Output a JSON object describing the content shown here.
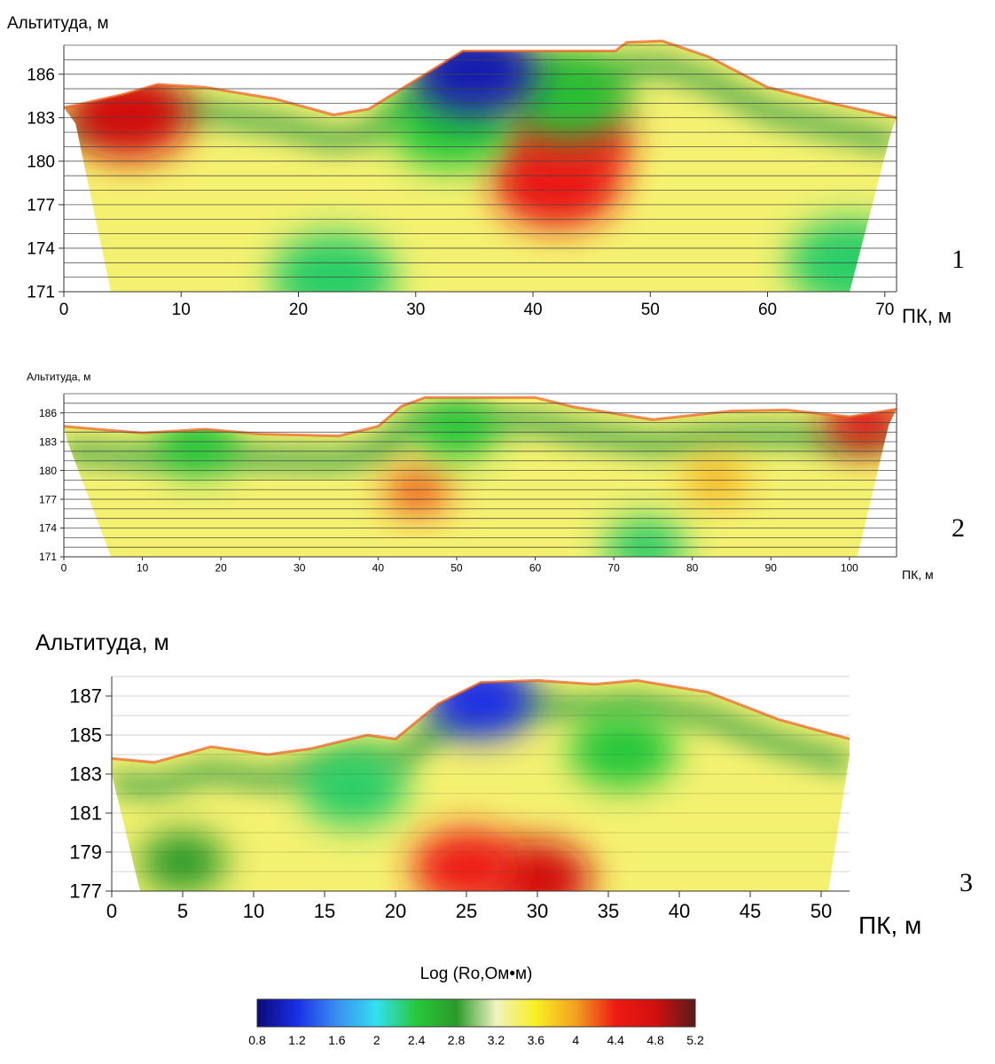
{
  "chart_data": [
    {
      "type": "heatmap",
      "panel_label": "1",
      "ylabel": "Альтитуда, м",
      "xlabel": "ПК, м",
      "x_ticks": [
        "0",
        "10",
        "20",
        "30",
        "40",
        "50",
        "60",
        "70"
      ],
      "y_ticks": [
        "186",
        "183",
        "180",
        "177",
        "174",
        "171"
      ],
      "xlim": [
        0,
        71
      ],
      "ylim": [
        171,
        188
      ],
      "surface": [
        [
          0,
          183.7
        ],
        [
          5,
          184.6
        ],
        [
          8,
          185.3
        ],
        [
          12,
          185.1
        ],
        [
          18,
          184.3
        ],
        [
          23,
          183.2
        ],
        [
          26,
          183.6
        ],
        [
          30,
          185.6
        ],
        [
          34,
          187.6
        ],
        [
          38,
          187.6
        ],
        [
          44,
          187.6
        ],
        [
          47,
          187.6
        ],
        [
          48,
          188.2
        ],
        [
          51,
          188.3
        ],
        [
          55,
          187.2
        ],
        [
          60,
          185.1
        ],
        [
          66,
          183.9
        ],
        [
          71,
          183.0
        ]
      ],
      "section_bottom_x": [
        4,
        67
      ],
      "section_top_x": [
        1,
        70.5
      ],
      "anomalies": [
        {
          "x": 42,
          "y": 178.5,
          "log_rho": 4.5
        },
        {
          "x": 43,
          "y": 181.3,
          "log_rho": 4.4
        },
        {
          "x": 33,
          "y": 182.5,
          "log_rho": 2.4
        },
        {
          "x": 43,
          "y": 184.5,
          "log_rho": 2.5
        },
        {
          "x": 5.5,
          "y": 183.2,
          "log_rho": 4.8
        },
        {
          "x": 35,
          "y": 186.2,
          "log_rho": 1.0
        },
        {
          "x": 23,
          "y": 172,
          "log_rho": 2.3
        },
        {
          "x": 67,
          "y": 173,
          "log_rho": 2.3
        }
      ]
    },
    {
      "type": "heatmap",
      "panel_label": "2",
      "ylabel": "Альтитуда, м",
      "xlabel": "ПК, м",
      "x_ticks": [
        "0",
        "10",
        "20",
        "30",
        "40",
        "50",
        "60",
        "70",
        "80",
        "90",
        "100"
      ],
      "y_ticks": [
        "186",
        "183",
        "180",
        "177",
        "174",
        "171"
      ],
      "xlim": [
        0,
        106
      ],
      "ylim": [
        171,
        188
      ],
      "surface": [
        [
          0,
          184.6
        ],
        [
          10,
          183.9
        ],
        [
          18,
          184.3
        ],
        [
          25,
          183.8
        ],
        [
          35,
          183.6
        ],
        [
          40,
          184.6
        ],
        [
          43,
          186.7
        ],
        [
          46,
          187.6
        ],
        [
          60,
          187.6
        ],
        [
          65,
          186.6
        ],
        [
          75,
          185.3
        ],
        [
          85,
          186.2
        ],
        [
          92,
          186.3
        ],
        [
          100,
          185.6
        ],
        [
          106,
          186.4
        ]
      ],
      "section_bottom_x": [
        6,
        101
      ],
      "section_top_x": [
        0.5,
        105
      ],
      "anomalies": [
        {
          "x": 45,
          "y": 177.8,
          "log_rho": 4.2
        },
        {
          "x": 83,
          "y": 179,
          "log_rho": 3.9
        },
        {
          "x": 50,
          "y": 184.3,
          "log_rho": 2.4
        },
        {
          "x": 17,
          "y": 182.6,
          "log_rho": 2.4
        },
        {
          "x": 74,
          "y": 172,
          "log_rho": 2.3
        },
        {
          "x": 102,
          "y": 185,
          "log_rho": 4.6
        }
      ]
    },
    {
      "type": "heatmap",
      "panel_label": "3",
      "ylabel": "Альтитуда, м",
      "xlabel": "ПК, м",
      "x_ticks": [
        "0",
        "5",
        "10",
        "15",
        "20",
        "25",
        "30",
        "35",
        "40",
        "45",
        "50"
      ],
      "y_ticks": [
        "187",
        "185",
        "183",
        "181",
        "179",
        "177"
      ],
      "xlim": [
        0,
        52
      ],
      "ylim": [
        177,
        188
      ],
      "surface": [
        [
          0,
          183.8
        ],
        [
          3,
          183.6
        ],
        [
          7,
          184.4
        ],
        [
          11,
          184
        ],
        [
          14,
          184.3
        ],
        [
          18,
          185
        ],
        [
          20,
          184.8
        ],
        [
          23,
          186.6
        ],
        [
          26,
          187.7
        ],
        [
          30,
          187.8
        ],
        [
          34,
          187.6
        ],
        [
          37,
          187.8
        ],
        [
          42,
          187.2
        ],
        [
          47,
          185.8
        ],
        [
          52,
          184.8
        ]
      ],
      "section_bottom_x": [
        2,
        50.5
      ],
      "section_top_x": [
        0,
        52
      ],
      "anomalies": [
        {
          "x": 30,
          "y": 177.6,
          "log_rho": 4.8
        },
        {
          "x": 25,
          "y": 178.2,
          "log_rho": 4.4
        },
        {
          "x": 17,
          "y": 182.3,
          "log_rho": 2.3
        },
        {
          "x": 36,
          "y": 184.2,
          "log_rho": 2.4
        },
        {
          "x": 5,
          "y": 178.5,
          "log_rho": 2.8
        },
        {
          "x": 26,
          "y": 186.8,
          "log_rho": 1.2
        }
      ]
    }
  ],
  "colorbar": {
    "title": "Log (Ro,Ом•м)",
    "ticks": [
      "0.8",
      "1.2",
      "1.6",
      "2",
      "2.4",
      "2.8",
      "3.2",
      "3.6",
      "4",
      "4.4",
      "4.8",
      "5.2"
    ],
    "range": [
      0.8,
      5.2
    ],
    "colors": [
      "#0a0a7a",
      "#1a2fe6",
      "#3a8ff0",
      "#33e0f0",
      "#28c83a",
      "#2a9a2a",
      "#f2f2c0",
      "#f7f020",
      "#f2a020",
      "#ee1a14",
      "#d21010",
      "#5a1a1a"
    ]
  }
}
